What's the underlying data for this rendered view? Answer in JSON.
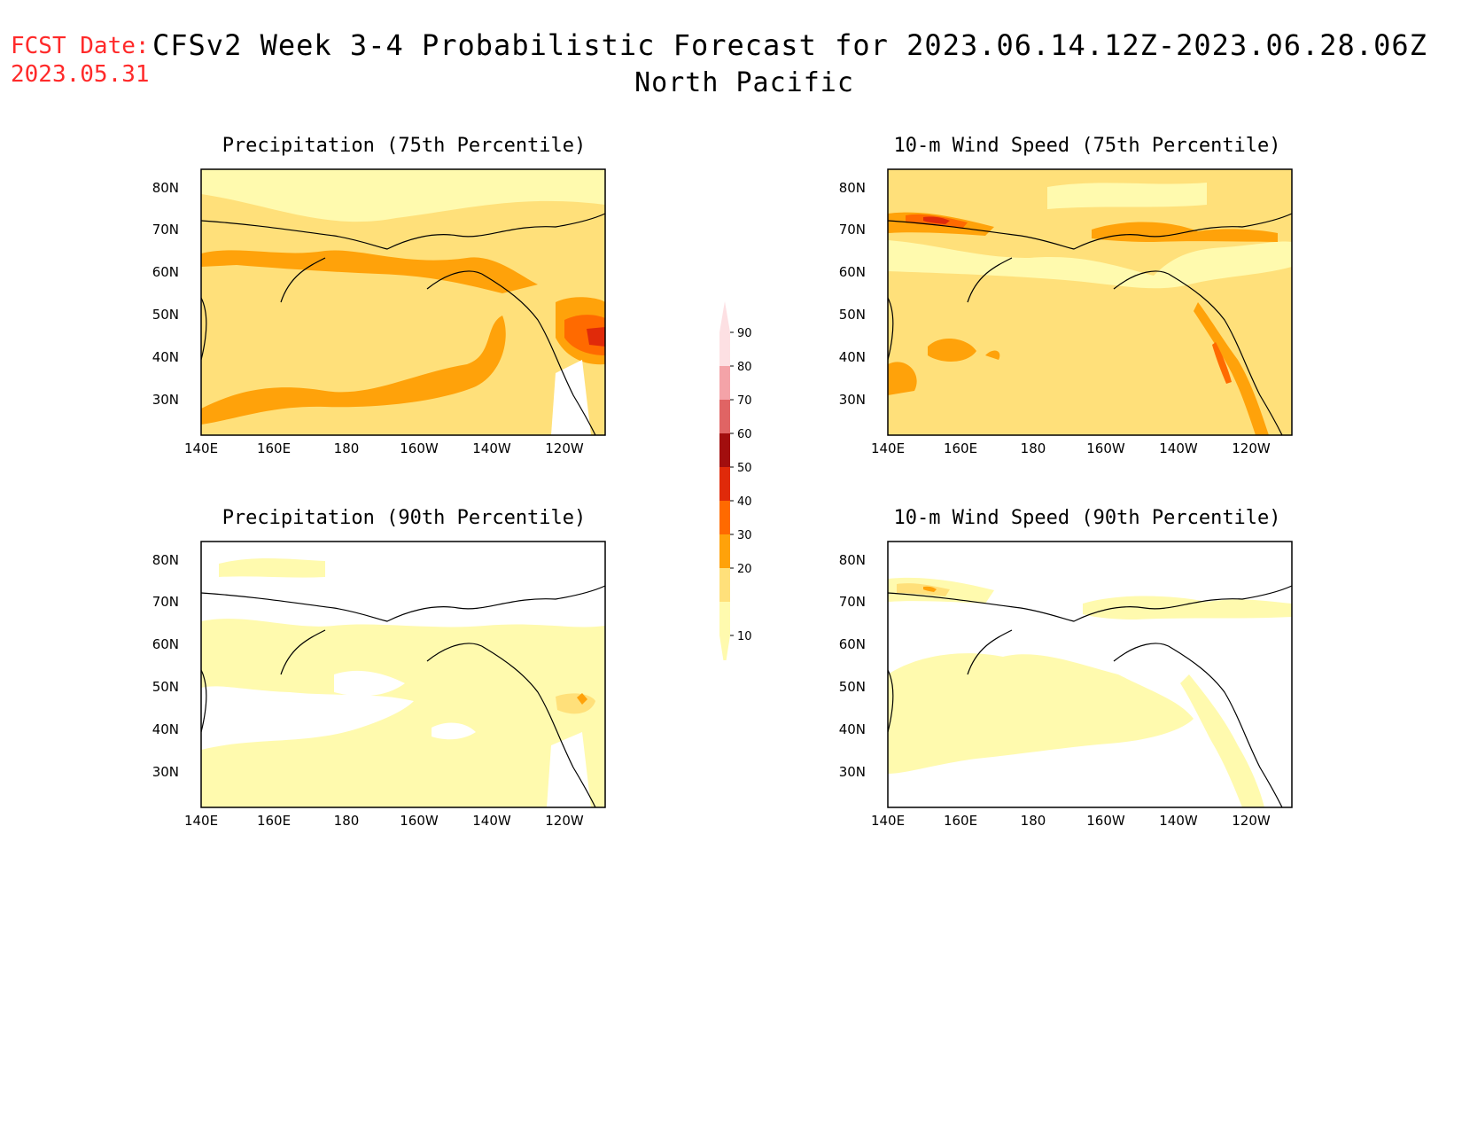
{
  "header": {
    "fcst_label": "FCST Date:",
    "fcst_date": "2023.05.31",
    "title": "CFSv2 Week 3-4 Probabilistic Forecast for 2023.06.14.12Z-2023.06.28.06Z",
    "region": "North Pacific"
  },
  "panels": [
    {
      "title": "Precipitation (75th Percentile)"
    },
    {
      "title": "10-m Wind Speed (75th Percentile)"
    },
    {
      "title": "Precipitation (90th Percentile)"
    },
    {
      "title": "10-m Wind Speed (90th Percentile)"
    }
  ],
  "axes": {
    "lat_labels": [
      "80N",
      "70N",
      "60N",
      "50N",
      "40N",
      "30N"
    ],
    "lon_labels": [
      "140E",
      "160E",
      "180",
      "160W",
      "140W",
      "120W"
    ]
  },
  "colorbar": {
    "ticks": [
      "90",
      "80",
      "70",
      "60",
      "50",
      "40",
      "30",
      "20",
      "10"
    ],
    "colors": [
      "#fde0e3",
      "#f4a3a8",
      "#e06464",
      "#a20e0e",
      "#e02a0a",
      "#ff6a00",
      "#ffa20a",
      "#ffe07a",
      "#fffaae"
    ]
  },
  "map_colors": {
    "c10": "#fffaae",
    "c20": "#ffe07a",
    "c30": "#ffa20a",
    "c40": "#ff6a00",
    "c50": "#e02a0a",
    "c60": "#a20e0e",
    "none": "#ffffff"
  }
}
